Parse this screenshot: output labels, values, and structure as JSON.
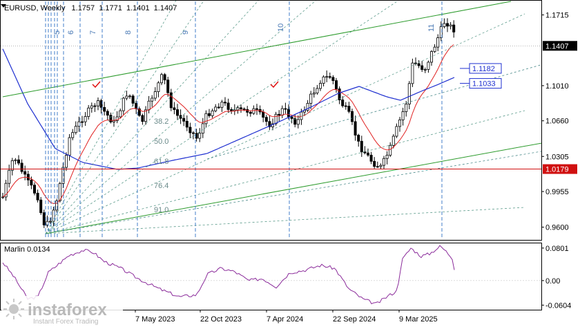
{
  "header": {
    "symbol": "EURUSD",
    "timeframe": "Weekly",
    "ohlc": [
      "1.1757",
      "1.1771",
      "1.1401",
      "1.1407"
    ]
  },
  "indicator": {
    "name": "Marlin",
    "value": "0.0134"
  },
  "watermark": {
    "brand": "instaforex",
    "tagline": "Instant Forex Trading"
  },
  "chart_data": {
    "type": "candlestick",
    "y_axis_ticks": [
      "1.1715",
      "1.1010",
      "1.0660",
      "1.0305",
      "0.9955",
      "0.9600"
    ],
    "ylim": [
      0.948,
      1.185
    ],
    "x_axis_labels": [
      "7 May 2023",
      "22 Oct 2023",
      "7 Apr 2024",
      "22 Sep 2024",
      "9 Mar 2025"
    ],
    "price_labels": [
      {
        "value": 1.1407,
        "text": "1.1407",
        "style": "current"
      },
      {
        "value": 1.0179,
        "text": "1.0179",
        "style": "support"
      },
      {
        "value": 1.1182,
        "text": "1.1182",
        "style": "ma"
      },
      {
        "value": 1.1033,
        "text": "1.1033",
        "style": "ma"
      }
    ],
    "support_level": 1.0179,
    "fib_levels": [
      "38.2",
      "50.0",
      "61.8",
      "76.4",
      "91.0"
    ],
    "cycle_numbers": [
      "5",
      "6",
      "7",
      "8",
      "9",
      "10",
      "11"
    ],
    "oscillator": {
      "name": "Marlin",
      "ticks": [
        "0.0801",
        "0.00",
        "-0.0604"
      ],
      "ylim": [
        -0.07,
        0.09
      ]
    },
    "colors": {
      "candle": "#000000",
      "ma_fast": "#e02020",
      "ma_slow": "#1e2fd0",
      "channel": "#2a9a2a",
      "support": "#d01010",
      "cycle_lines": "#2e6fc4",
      "oscillator": "#8a2a9a"
    }
  }
}
